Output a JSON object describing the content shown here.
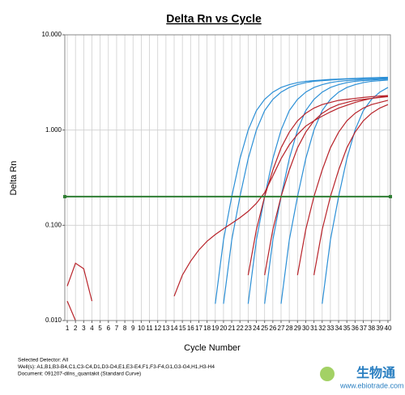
{
  "chart_data": {
    "type": "line",
    "title": "Delta Rn vs Cycle",
    "x_label": "Cycle Number",
    "y_label": "Delta Rn",
    "x": [
      1,
      2,
      3,
      4,
      5,
      6,
      7,
      8,
      9,
      10,
      11,
      12,
      13,
      14,
      15,
      16,
      17,
      18,
      19,
      20,
      21,
      22,
      23,
      24,
      25,
      26,
      27,
      28,
      29,
      30,
      31,
      32,
      33,
      34,
      35,
      36,
      37,
      38,
      39,
      40
    ],
    "xlim": [
      0.7,
      40.3
    ],
    "xticks": [
      1,
      2,
      3,
      4,
      5,
      6,
      7,
      8,
      9,
      10,
      11,
      12,
      13,
      14,
      15,
      16,
      17,
      18,
      19,
      20,
      21,
      22,
      23,
      24,
      25,
      26,
      27,
      28,
      29,
      30,
      31,
      32,
      33,
      34,
      35,
      36,
      37,
      38,
      39,
      40
    ],
    "ylim": [
      0.01,
      10
    ],
    "yticks": [
      {
        "value": 0.01,
        "label": "0.010"
      },
      {
        "value": 0.1,
        "label": "0.100"
      },
      {
        "value": 1,
        "label": "1.000"
      },
      {
        "value": 10,
        "label": "10.000"
      }
    ],
    "log_y": true,
    "grid": true,
    "threshold": 0.2,
    "threshold_color": "#2e7d32",
    "series": [
      {
        "color": "#2b8fd6",
        "values": [
          null,
          null,
          null,
          null,
          null,
          null,
          null,
          null,
          null,
          null,
          null,
          null,
          null,
          null,
          null,
          null,
          null,
          null,
          0.015,
          0.07,
          0.2,
          0.5,
          1.0,
          1.6,
          2.1,
          2.5,
          2.8,
          3.0,
          3.15,
          3.25,
          3.3,
          3.35,
          3.4,
          3.43,
          3.46,
          3.49,
          3.52,
          3.54,
          3.56,
          3.58
        ]
      },
      {
        "color": "#2b8fd6",
        "values": [
          null,
          null,
          null,
          null,
          null,
          null,
          null,
          null,
          null,
          null,
          null,
          null,
          null,
          null,
          null,
          null,
          null,
          null,
          null,
          0.015,
          0.07,
          0.2,
          0.5,
          1.0,
          1.6,
          2.1,
          2.5,
          2.8,
          3.0,
          3.15,
          3.25,
          3.3,
          3.35,
          3.4,
          3.43,
          3.46,
          3.49,
          3.52,
          3.54,
          3.56
        ]
      },
      {
        "color": "#2b8fd6",
        "values": [
          null,
          null,
          null,
          null,
          null,
          null,
          null,
          null,
          null,
          null,
          null,
          null,
          null,
          null,
          null,
          null,
          null,
          null,
          null,
          null,
          null,
          null,
          0.015,
          0.07,
          0.2,
          0.5,
          1.0,
          1.6,
          2.1,
          2.5,
          2.8,
          3.0,
          3.15,
          3.25,
          3.3,
          3.35,
          3.4,
          3.43,
          3.46,
          3.49
        ]
      },
      {
        "color": "#2b8fd6",
        "values": [
          null,
          null,
          null,
          null,
          null,
          null,
          null,
          null,
          null,
          null,
          null,
          null,
          null,
          null,
          null,
          null,
          null,
          null,
          null,
          null,
          null,
          null,
          null,
          null,
          0.015,
          0.07,
          0.2,
          0.5,
          1.0,
          1.6,
          2.1,
          2.5,
          2.8,
          3.0,
          3.15,
          3.25,
          3.3,
          3.35,
          3.4,
          3.43
        ]
      },
      {
        "color": "#2b8fd6",
        "values": [
          null,
          null,
          null,
          null,
          null,
          null,
          null,
          null,
          null,
          null,
          null,
          null,
          null,
          null,
          null,
          null,
          null,
          null,
          null,
          null,
          null,
          null,
          null,
          null,
          null,
          null,
          0.015,
          0.07,
          0.2,
          0.5,
          1.0,
          1.6,
          2.1,
          2.5,
          2.8,
          3.0,
          3.15,
          3.25,
          3.3,
          3.35
        ]
      },
      {
        "color": "#2b8fd6",
        "values": [
          null,
          null,
          null,
          null,
          null,
          null,
          null,
          null,
          null,
          null,
          null,
          null,
          null,
          null,
          null,
          null,
          null,
          null,
          null,
          null,
          null,
          null,
          null,
          null,
          null,
          null,
          null,
          null,
          null,
          null,
          null,
          0.015,
          0.07,
          0.2,
          0.5,
          1.0,
          1.6,
          2.1,
          2.5,
          2.8
        ]
      },
      {
        "color": "#b8232a",
        "values": [
          null,
          null,
          null,
          null,
          null,
          null,
          null,
          null,
          null,
          null,
          null,
          null,
          null,
          null,
          null,
          null,
          null,
          null,
          null,
          null,
          null,
          null,
          0.03,
          0.09,
          0.2,
          0.38,
          0.65,
          0.95,
          1.25,
          1.5,
          1.7,
          1.85,
          1.95,
          2.05,
          2.1,
          2.15,
          2.2,
          2.24,
          2.28,
          2.3
        ]
      },
      {
        "color": "#b8232a",
        "values": [
          null,
          null,
          null,
          null,
          null,
          null,
          null,
          null,
          null,
          null,
          null,
          null,
          null,
          null,
          null,
          null,
          null,
          null,
          null,
          null,
          null,
          null,
          null,
          null,
          0.03,
          0.09,
          0.2,
          0.38,
          0.65,
          0.95,
          1.25,
          1.5,
          1.7,
          1.85,
          1.95,
          2.05,
          2.1,
          2.15,
          2.2,
          2.24
        ]
      },
      {
        "color": "#b8232a",
        "values": [
          null,
          null,
          null,
          null,
          null,
          null,
          null,
          null,
          null,
          null,
          null,
          null,
          null,
          null,
          null,
          null,
          null,
          null,
          null,
          null,
          null,
          null,
          null,
          null,
          null,
          null,
          null,
          null,
          0.03,
          0.09,
          0.2,
          0.38,
          0.65,
          0.95,
          1.25,
          1.5,
          1.7,
          1.85,
          1.95,
          2.05
        ]
      },
      {
        "color": "#b8232a",
        "values": [
          null,
          null,
          null,
          null,
          null,
          null,
          null,
          null,
          null,
          null,
          null,
          null,
          null,
          null,
          null,
          null,
          null,
          null,
          null,
          null,
          null,
          null,
          null,
          null,
          null,
          null,
          null,
          null,
          null,
          null,
          0.03,
          0.09,
          0.2,
          0.38,
          0.65,
          0.95,
          1.25,
          1.5,
          1.7,
          1.85
        ]
      },
      {
        "color": "#b8232a",
        "values": [
          null,
          null,
          null,
          null,
          null,
          null,
          null,
          null,
          null,
          null,
          null,
          null,
          null,
          0.018,
          0.03,
          0.042,
          0.055,
          0.068,
          0.08,
          0.092,
          0.105,
          0.12,
          0.14,
          0.17,
          0.22,
          0.33,
          0.5,
          0.7,
          0.9,
          1.1,
          1.25,
          1.4,
          1.55,
          1.7,
          1.82,
          1.95,
          2.05,
          2.15,
          2.22,
          2.3
        ]
      },
      {
        "color": "#b8232a",
        "values": [
          0.023,
          0.04,
          0.035,
          0.016,
          null,
          null,
          null,
          null,
          null,
          null,
          null,
          null,
          null,
          null,
          null,
          null,
          null,
          null,
          null,
          null,
          null,
          null,
          null,
          null,
          null,
          null,
          null,
          null,
          null,
          null,
          null,
          null,
          null,
          null,
          null,
          null,
          null,
          null,
          null,
          null
        ]
      },
      {
        "color": "#b8232a",
        "values": [
          0.016,
          0.01,
          null,
          null,
          null,
          null,
          null,
          null,
          null,
          null,
          null,
          null,
          null,
          null,
          null,
          null,
          null,
          null,
          null,
          null,
          null,
          null,
          null,
          null,
          null,
          null,
          null,
          null,
          null,
          null,
          null,
          null,
          null,
          null,
          null,
          null,
          null,
          null,
          null,
          null
        ]
      }
    ]
  },
  "footer": {
    "detector": "Selected Detector: All",
    "wells": "Well(s): A1,B1,B3-B4,C1,C3-C4,D1,D3-D4,E1,E3-E4,F1,F3-F4,G1,G3-G4,H1,H3-H4",
    "document": "Document: 091207-dilns_quantakit (Standard Curve)"
  },
  "watermark": {
    "brand": "生物通",
    "url": "www.ebiotrade.com"
  }
}
